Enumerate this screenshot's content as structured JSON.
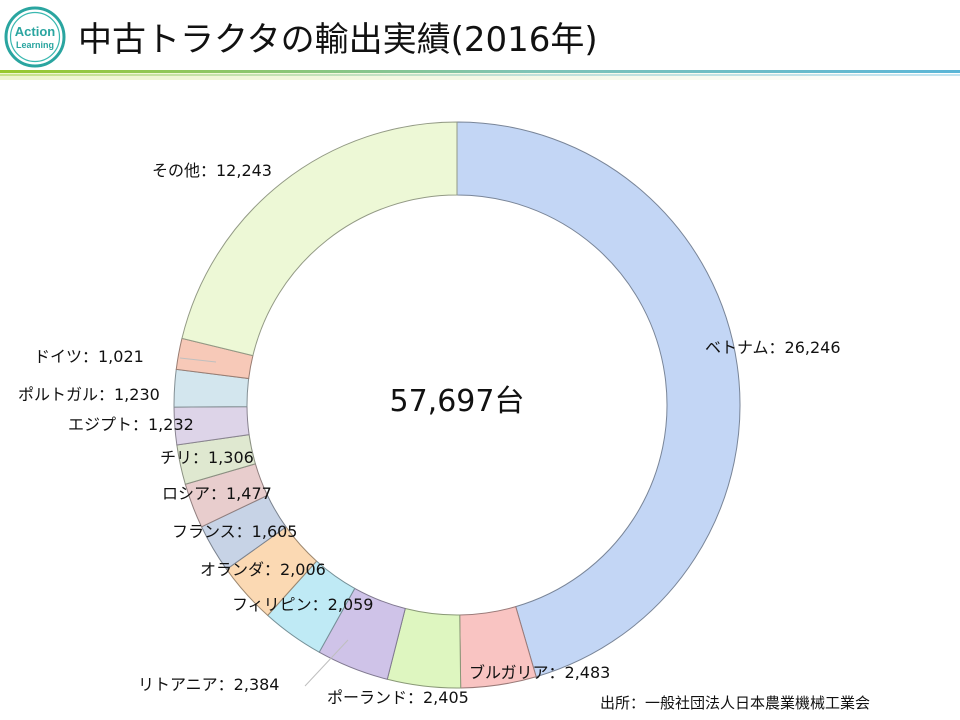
{
  "page": {
    "title": "中古トラクタの輸出実績(2016年)",
    "logo_text": [
      "Action",
      "Learning"
    ],
    "source": "出所：一般社団法人日本農業機械工業会"
  },
  "chart_data": {
    "type": "pie",
    "donut": true,
    "center_label": "57,697台",
    "total": 57697,
    "slices": [
      {
        "label": "ベトナム",
        "value": 26246,
        "label_text": "ベトナム：26,246",
        "color": "#c3d6f5"
      },
      {
        "label": "ブルガリア",
        "value": 2483,
        "label_text": "ブルガリア：2,483",
        "color": "#f9c4c2"
      },
      {
        "label": "ポーランド",
        "value": 2405,
        "label_text": "ポーランド：2,405",
        "color": "#def6c0"
      },
      {
        "label": "リトアニア",
        "value": 2384,
        "label_text": "リトアニア：2,384",
        "color": "#cfc3e8"
      },
      {
        "label": "フィリピン",
        "value": 2059,
        "label_text": "フィリピン：2,059",
        "color": "#bfeaf5"
      },
      {
        "label": "オランダ",
        "value": 2006,
        "label_text": "オランダ：2,006",
        "color": "#fbd9b3"
      },
      {
        "label": "フランス",
        "value": 1605,
        "label_text": "フランス：1,605",
        "color": "#c7d3e6"
      },
      {
        "label": "ロシア",
        "value": 1477,
        "label_text": "ロシア：1,477",
        "color": "#e8cdcd"
      },
      {
        "label": "チリ",
        "value": 1306,
        "label_text": "チリ：1,306",
        "color": "#dfe8d0"
      },
      {
        "label": "エジプト",
        "value": 1232,
        "label_text": "エジプト：1,232",
        "color": "#ddd4e8"
      },
      {
        "label": "ポルトガル",
        "value": 1230,
        "label_text": "ポルトガル：1,230",
        "color": "#d3e6ee"
      },
      {
        "label": "ドイツ",
        "value": 1021,
        "label_text": "ドイツ：1,021",
        "color": "#f7c9b8"
      },
      {
        "label": "その他",
        "value": 12243,
        "label_text": "その他：12,243",
        "color": "#edf8d6"
      }
    ]
  }
}
